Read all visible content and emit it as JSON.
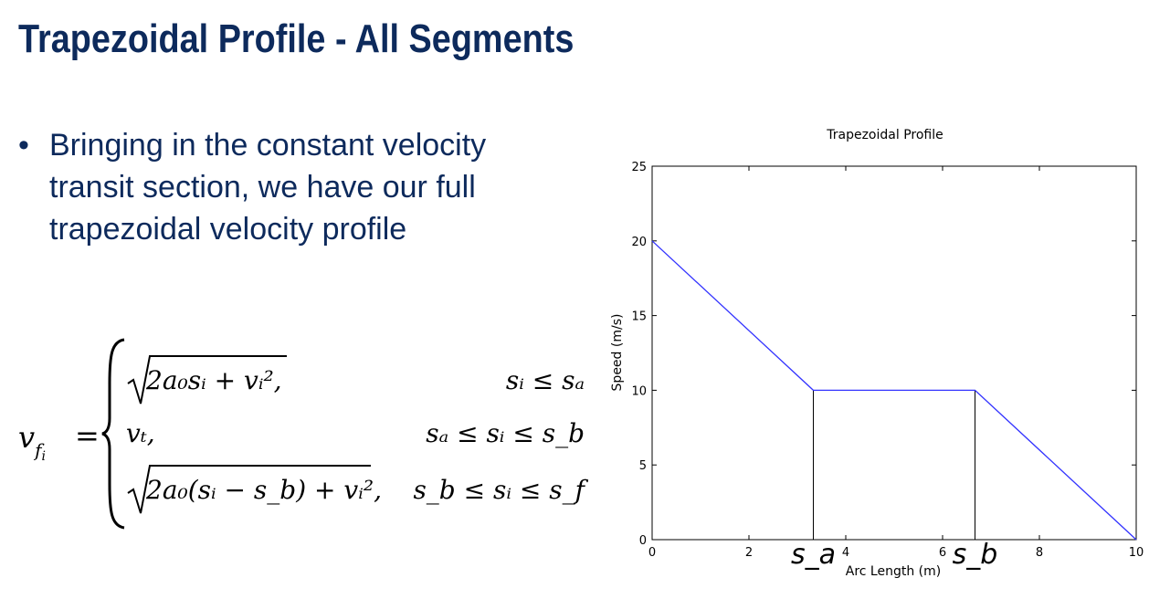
{
  "slide": {
    "title": "Trapezoidal Profile - All Segments"
  },
  "bullet": {
    "marker": "•",
    "lines": [
      "Bringing in the constant velocity",
      "transit section, we have our full",
      "trapezoidal velocity profile"
    ]
  },
  "equation": {
    "lhs": "v",
    "lhs_sub": "f",
    "lhs_subsub": "i",
    "equals": "=",
    "cases": [
      {
        "expr": "2a₀sᵢ + vᵢ²,",
        "radical": true,
        "condition": "sᵢ ≤ sₐ"
      },
      {
        "expr": "vₜ,",
        "radical": false,
        "condition": "sₐ ≤ sᵢ ≤ s_b"
      },
      {
        "expr": "2a₀(sᵢ − s_b) + vᵢ²,",
        "radical": true,
        "condition": "s_b ≤ sᵢ ≤ s_f"
      }
    ]
  },
  "chart_data": {
    "type": "line",
    "title": "Trapezoidal Profile",
    "xlabel": "Arc Length (m)",
    "ylabel": "Speed (m/s)",
    "xlim": [
      0,
      10
    ],
    "ylim": [
      0,
      25
    ],
    "xticks": [
      0,
      2,
      4,
      6,
      8,
      10
    ],
    "yticks": [
      0,
      5,
      10,
      15,
      20,
      25
    ],
    "series": [
      {
        "color": "#3333ff",
        "x": [
          0,
          3.33,
          6.67,
          10
        ],
        "y": [
          20,
          10,
          10,
          0
        ]
      }
    ],
    "vlines": [
      {
        "x": 3.33,
        "y_top": 10,
        "label": "s_a"
      },
      {
        "x": 6.67,
        "y_top": 10,
        "label": "s_b"
      }
    ],
    "grid": false
  }
}
